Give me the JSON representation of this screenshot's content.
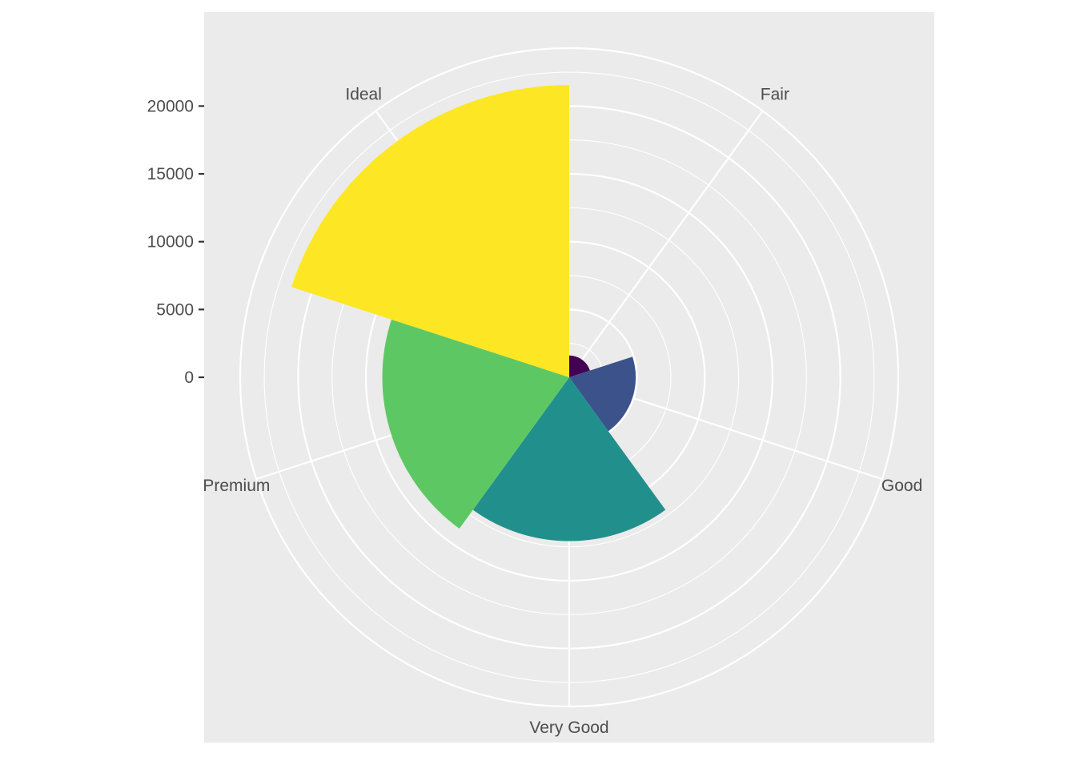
{
  "chart_data": {
    "type": "polar-bar",
    "categories": [
      "Fair",
      "Good",
      "Very Good",
      "Premium",
      "Ideal"
    ],
    "values": [
      1610,
      4906,
      12082,
      13791,
      21551
    ],
    "ylim": [
      0,
      24000
    ],
    "y_ticks": [
      0,
      5000,
      10000,
      15000,
      20000
    ],
    "y_tick_labels": [
      "0",
      "5000",
      "10000",
      "15000",
      "20000"
    ],
    "title": "",
    "xlabel": "",
    "ylabel": "",
    "grid": true,
    "legend": "none",
    "colors": [
      "#440154",
      "#3B528B",
      "#21908C",
      "#5DC863",
      "#FDE725"
    ],
    "panel_background": "#EBEBEB",
    "grid_color": "#FFFFFF"
  }
}
